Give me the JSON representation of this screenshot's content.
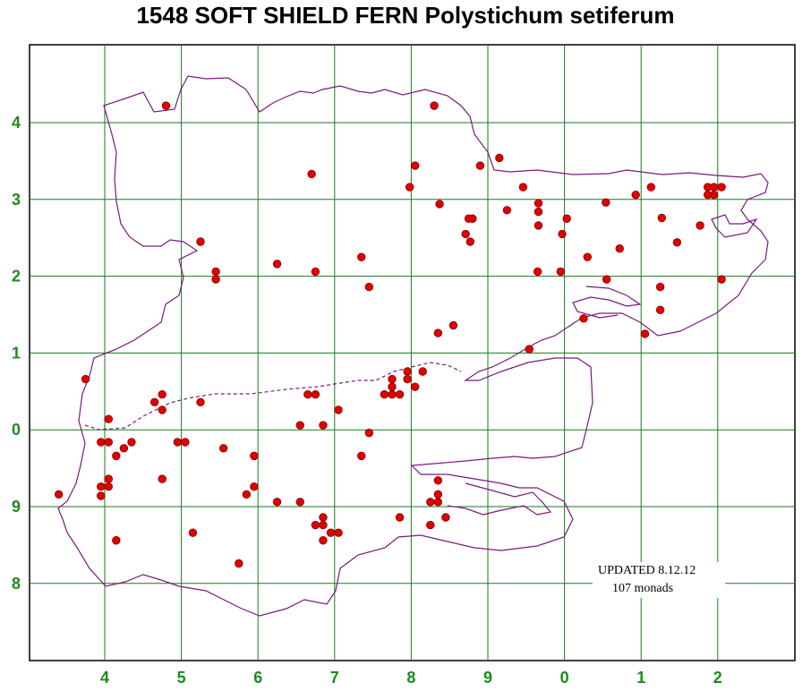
{
  "title": "1548 SOFT SHIELD FERN Polystichum setiferum",
  "x_labels": [
    "4",
    "5",
    "6",
    "7",
    "8",
    "9",
    "0",
    "1",
    "2"
  ],
  "y_labels": [
    "4",
    "3",
    "2",
    "1",
    "0",
    "9",
    "8"
  ],
  "note": {
    "updated": "UPDATED 8.12.12",
    "count": "107 monads"
  },
  "colors": {
    "grid": "#1a7a1a",
    "boundary": "#7a1a7a",
    "record": "#e00000",
    "labels": "#1f8a1f"
  },
  "records": [
    [
      4.8,
      4.22
    ],
    [
      6.7,
      3.33
    ],
    [
      8.3,
      4.22
    ],
    [
      8.9,
      3.44
    ],
    [
      8.05,
      3.44
    ],
    [
      7.98,
      3.16
    ],
    [
      8.37,
      2.94
    ],
    [
      8.8,
      2.75
    ],
    [
      8.71,
      2.55
    ],
    [
      8.77,
      2.45
    ],
    [
      9.25,
      2.86
    ],
    [
      9.46,
      3.16
    ],
    [
      9.66,
      2.95
    ],
    [
      9.66,
      2.84
    ],
    [
      9.66,
      2.66
    ],
    [
      9.97,
      2.55
    ],
    [
      10.03,
      2.75
    ],
    [
      10.54,
      2.96
    ],
    [
      10.72,
      2.36
    ],
    [
      10.3,
      2.25
    ],
    [
      9.65,
      2.06
    ],
    [
      9.95,
      2.06
    ],
    [
      10.93,
      3.06
    ],
    [
      11.13,
      3.16
    ],
    [
      11.27,
      2.76
    ],
    [
      11.47,
      2.44
    ],
    [
      11.77,
      2.66
    ],
    [
      11.87,
      3.06
    ],
    [
      11.87,
      3.16
    ],
    [
      11.95,
      3.06
    ],
    [
      11.95,
      3.16
    ],
    [
      12.05,
      3.16
    ],
    [
      11.25,
      1.86
    ],
    [
      11.25,
      1.56
    ],
    [
      12.05,
      1.96
    ],
    [
      10.55,
      1.96
    ],
    [
      9.54,
      1.05
    ],
    [
      8.55,
      1.36
    ],
    [
      8.35,
      1.26
    ],
    [
      7.45,
      1.86
    ],
    [
      7.35,
      2.25
    ],
    [
      6.75,
      2.06
    ],
    [
      6.25,
      2.16
    ],
    [
      5.45,
      2.06
    ],
    [
      5.45,
      1.96
    ],
    [
      5.25,
      2.45
    ],
    [
      3.75,
      0.66
    ],
    [
      3.4,
      -0.84
    ],
    [
      4.05,
      0.14
    ],
    [
      3.95,
      -0.16
    ],
    [
      4.05,
      -0.16
    ],
    [
      4.15,
      -0.34
    ],
    [
      4.25,
      -0.24
    ],
    [
      4.35,
      -0.16
    ],
    [
      3.95,
      -0.74
    ],
    [
      3.95,
      -0.86
    ],
    [
      4.05,
      -0.64
    ],
    [
      4.05,
      -0.74
    ],
    [
      4.65,
      0.36
    ],
    [
      4.75,
      0.26
    ],
    [
      4.75,
      0.46
    ],
    [
      4.75,
      -0.64
    ],
    [
      4.95,
      -0.16
    ],
    [
      5.05,
      -0.16
    ],
    [
      5.25,
      0.36
    ],
    [
      5.55,
      -0.24
    ],
    [
      5.95,
      -0.34
    ],
    [
      5.95,
      -0.74
    ],
    [
      5.85,
      -0.84
    ],
    [
      5.75,
      -1.74
    ],
    [
      5.15,
      -1.34
    ],
    [
      4.15,
      -1.44
    ],
    [
      6.25,
      -0.94
    ],
    [
      6.55,
      -0.94
    ],
    [
      6.65,
      0.46
    ],
    [
      6.75,
      0.46
    ],
    [
      6.55,
      0.06
    ],
    [
      6.85,
      0.06
    ],
    [
      7.05,
      0.26
    ],
    [
      7.45,
      -0.04
    ],
    [
      7.35,
      -0.34
    ],
    [
      6.75,
      -1.24
    ],
    [
      6.85,
      -1.14
    ],
    [
      6.85,
      -1.24
    ],
    [
      6.95,
      -1.34
    ],
    [
      7.05,
      -1.34
    ],
    [
      6.85,
      -1.44
    ],
    [
      7.65,
      0.46
    ],
    [
      7.75,
      0.46
    ],
    [
      7.85,
      0.46
    ],
    [
      7.75,
      0.56
    ],
    [
      7.75,
      0.66
    ],
    [
      7.95,
      0.66
    ],
    [
      7.95,
      0.76
    ],
    [
      8.05,
      0.56
    ],
    [
      8.15,
      0.76
    ],
    [
      7.85,
      -1.14
    ],
    [
      8.25,
      -0.94
    ],
    [
      8.25,
      -1.24
    ],
    [
      8.35,
      -0.94
    ],
    [
      8.35,
      -0.84
    ],
    [
      8.45,
      -1.14
    ],
    [
      8.35,
      -0.66
    ],
    [
      8.75,
      2.75
    ],
    [
      9.15,
      3.54
    ],
    [
      10.25,
      1.45
    ],
    [
      11.05,
      1.25
    ]
  ]
}
